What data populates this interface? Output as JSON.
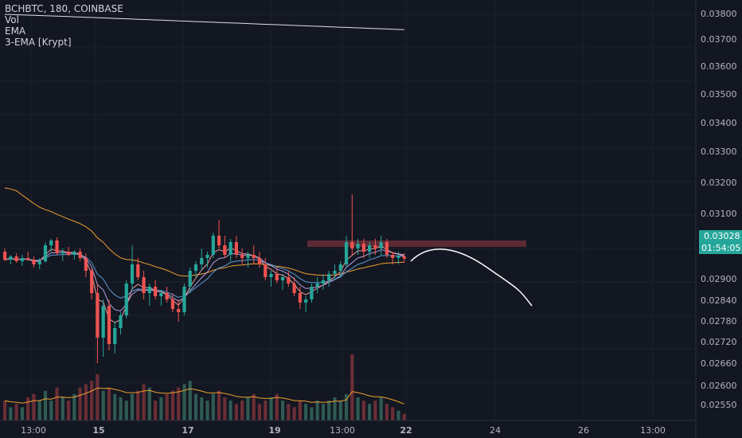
{
  "legend": {
    "symbol_line": "BCHBTC, 180, COINBASE",
    "vol_label": "Vol",
    "ema_label": "EMA",
    "ema3_label": "3-EMA [Krypt]"
  },
  "price_badge": {
    "value": "0.03028",
    "color": "#26a69a"
  },
  "countdown_badge": {
    "value": "01:54:05",
    "color": "#26a69a"
  },
  "chart_data": {
    "type": "candlestick",
    "y_axis_ticks": [
      "0.03800",
      "0.03700",
      "0.03600",
      "0.03500",
      "0.03400",
      "0.03300",
      "0.03200",
      "0.03100",
      "0.02900",
      "0.02840",
      "0.02780",
      "0.02720",
      "0.02660",
      "0.02600",
      "0.02550"
    ],
    "x_axis_ticks": [
      {
        "label": "13:00",
        "bold": false
      },
      {
        "label": "15",
        "bold": true
      },
      {
        "label": "17",
        "bold": true
      },
      {
        "label": "19",
        "bold": true
      },
      {
        "label": "13:00",
        "bold": false
      },
      {
        "label": "22",
        "bold": true
      },
      {
        "label": "24",
        "bold": false
      },
      {
        "label": "26",
        "bold": false
      },
      {
        "label": "13:00",
        "bold": false
      }
    ],
    "candles": [
      [
        0.0305,
        0.0306,
        0.0302,
        0.03025
      ],
      [
        0.03025,
        0.0304,
        0.0301,
        0.03035
      ],
      [
        0.03035,
        0.03045,
        0.03015,
        0.0302
      ],
      [
        0.0302,
        0.0304,
        0.03005,
        0.0303
      ],
      [
        0.0303,
        0.0305,
        0.0302,
        0.03025
      ],
      [
        0.03025,
        0.03035,
        0.03,
        0.0301
      ],
      [
        0.0301,
        0.0303,
        0.02995,
        0.0302
      ],
      [
        0.0302,
        0.0308,
        0.03015,
        0.0307
      ],
      [
        0.0307,
        0.0309,
        0.0305,
        0.03085
      ],
      [
        0.03085,
        0.03095,
        0.0304,
        0.03045
      ],
      [
        0.03045,
        0.0306,
        0.0302,
        0.0305
      ],
      [
        0.0305,
        0.03065,
        0.03035,
        0.0304
      ],
      [
        0.0304,
        0.03055,
        0.03025,
        0.0305
      ],
      [
        0.0305,
        0.0306,
        0.0302,
        0.0303
      ],
      [
        0.0303,
        0.03045,
        0.0297,
        0.0299
      ],
      [
        0.0299,
        0.03,
        0.029,
        0.0292
      ],
      [
        0.0292,
        0.0295,
        0.027,
        0.0278
      ],
      [
        0.0278,
        0.029,
        0.0272,
        0.0288
      ],
      [
        0.0288,
        0.029,
        0.0274,
        0.0276
      ],
      [
        0.0276,
        0.0283,
        0.0273,
        0.0281
      ],
      [
        0.0281,
        0.0286,
        0.0279,
        0.0285
      ],
      [
        0.0285,
        0.0296,
        0.0284,
        0.0295
      ],
      [
        0.0295,
        0.0307,
        0.0293,
        0.0301
      ],
      [
        0.0301,
        0.0303,
        0.0296,
        0.0297
      ],
      [
        0.0297,
        0.0299,
        0.029,
        0.0292
      ],
      [
        0.0292,
        0.0295,
        0.0288,
        0.0294
      ],
      [
        0.0294,
        0.0296,
        0.029,
        0.0291
      ],
      [
        0.0291,
        0.0293,
        0.0288,
        0.0292
      ],
      [
        0.0292,
        0.0294,
        0.0289,
        0.029
      ],
      [
        0.029,
        0.0292,
        0.0286,
        0.0287
      ],
      [
        0.0287,
        0.029,
        0.0283,
        0.0286
      ],
      [
        0.0286,
        0.0295,
        0.0285,
        0.0294
      ],
      [
        0.0294,
        0.03,
        0.0292,
        0.0299
      ],
      [
        0.0299,
        0.0302,
        0.0297,
        0.0301
      ],
      [
        0.0301,
        0.0306,
        0.0299,
        0.0303
      ],
      [
        0.0303,
        0.0305,
        0.03,
        0.0304
      ],
      [
        0.0304,
        0.0311,
        0.0303,
        0.031
      ],
      [
        0.031,
        0.0315,
        0.0306,
        0.0307
      ],
      [
        0.0307,
        0.031,
        0.0303,
        0.0304
      ],
      [
        0.0304,
        0.0309,
        0.0302,
        0.0308
      ],
      [
        0.0308,
        0.031,
        0.0303,
        0.0304
      ],
      [
        0.0304,
        0.0306,
        0.0301,
        0.0303
      ],
      [
        0.0303,
        0.0305,
        0.03,
        0.0304
      ],
      [
        0.0304,
        0.0307,
        0.0301,
        0.0303
      ],
      [
        0.0303,
        0.0305,
        0.03,
        0.0301
      ],
      [
        0.0301,
        0.0303,
        0.0296,
        0.0297
      ],
      [
        0.0297,
        0.0299,
        0.0294,
        0.0298
      ],
      [
        0.0298,
        0.03,
        0.0295,
        0.0296
      ],
      [
        0.0296,
        0.0298,
        0.0293,
        0.0297
      ],
      [
        0.0297,
        0.0299,
        0.0294,
        0.0295
      ],
      [
        0.0295,
        0.0297,
        0.0291,
        0.0292
      ],
      [
        0.0292,
        0.0294,
        0.0287,
        0.0289
      ],
      [
        0.0289,
        0.0291,
        0.0286,
        0.029
      ],
      [
        0.029,
        0.0295,
        0.0289,
        0.0294
      ],
      [
        0.0294,
        0.0297,
        0.0292,
        0.0295
      ],
      [
        0.0295,
        0.0298,
        0.0293,
        0.0296
      ],
      [
        0.0296,
        0.0299,
        0.0294,
        0.0298
      ],
      [
        0.0298,
        0.0301,
        0.0296,
        0.0299
      ],
      [
        0.0299,
        0.0302,
        0.0297,
        0.0301
      ],
      [
        0.0301,
        0.031,
        0.03,
        0.0308
      ],
      [
        0.0308,
        0.0323,
        0.0304,
        0.0306
      ],
      [
        0.0306,
        0.0309,
        0.0304,
        0.03075
      ],
      [
        0.03075,
        0.0309,
        0.0303,
        0.0305
      ],
      [
        0.0305,
        0.0308,
        0.0303,
        0.0307
      ],
      [
        0.0307,
        0.0309,
        0.0304,
        0.0306
      ],
      [
        0.0306,
        0.031,
        0.0304,
        0.0308
      ],
      [
        0.0308,
        0.0309,
        0.0303,
        0.0304
      ],
      [
        0.0304,
        0.0305,
        0.0301,
        0.0303
      ],
      [
        0.0303,
        0.0305,
        0.0301,
        0.03035
      ],
      [
        0.03035,
        0.03045,
        0.03015,
        0.03028
      ]
    ],
    "volume": [
      0.3,
      0.2,
      0.25,
      0.2,
      0.35,
      0.4,
      0.3,
      0.45,
      0.3,
      0.5,
      0.35,
      0.3,
      0.4,
      0.5,
      0.55,
      0.6,
      0.7,
      0.45,
      0.5,
      0.4,
      0.35,
      0.3,
      0.4,
      0.45,
      0.55,
      0.5,
      0.3,
      0.35,
      0.4,
      0.45,
      0.5,
      0.55,
      0.6,
      0.4,
      0.35,
      0.3,
      0.4,
      0.45,
      0.35,
      0.3,
      0.25,
      0.3,
      0.35,
      0.4,
      0.25,
      0.3,
      0.35,
      0.4,
      0.3,
      0.25,
      0.2,
      0.3,
      0.25,
      0.2,
      0.3,
      0.25,
      0.3,
      0.35,
      0.3,
      0.4,
      1.0,
      0.35,
      0.3,
      0.25,
      0.3,
      0.35,
      0.25,
      0.2,
      0.15,
      0.1
    ],
    "y_range": [
      0.0252,
      0.0384
    ],
    "resistance_zone": [
      0.03085,
      0.03065
    ],
    "projection": [
      [
        0.0302,
        0.03
      ],
      [
        0.0306,
        0.0304
      ],
      [
        0.0305,
        0.0303
      ],
      [
        0.03,
        0.0299
      ],
      [
        0.0288,
        0.0296
      ]
    ]
  }
}
